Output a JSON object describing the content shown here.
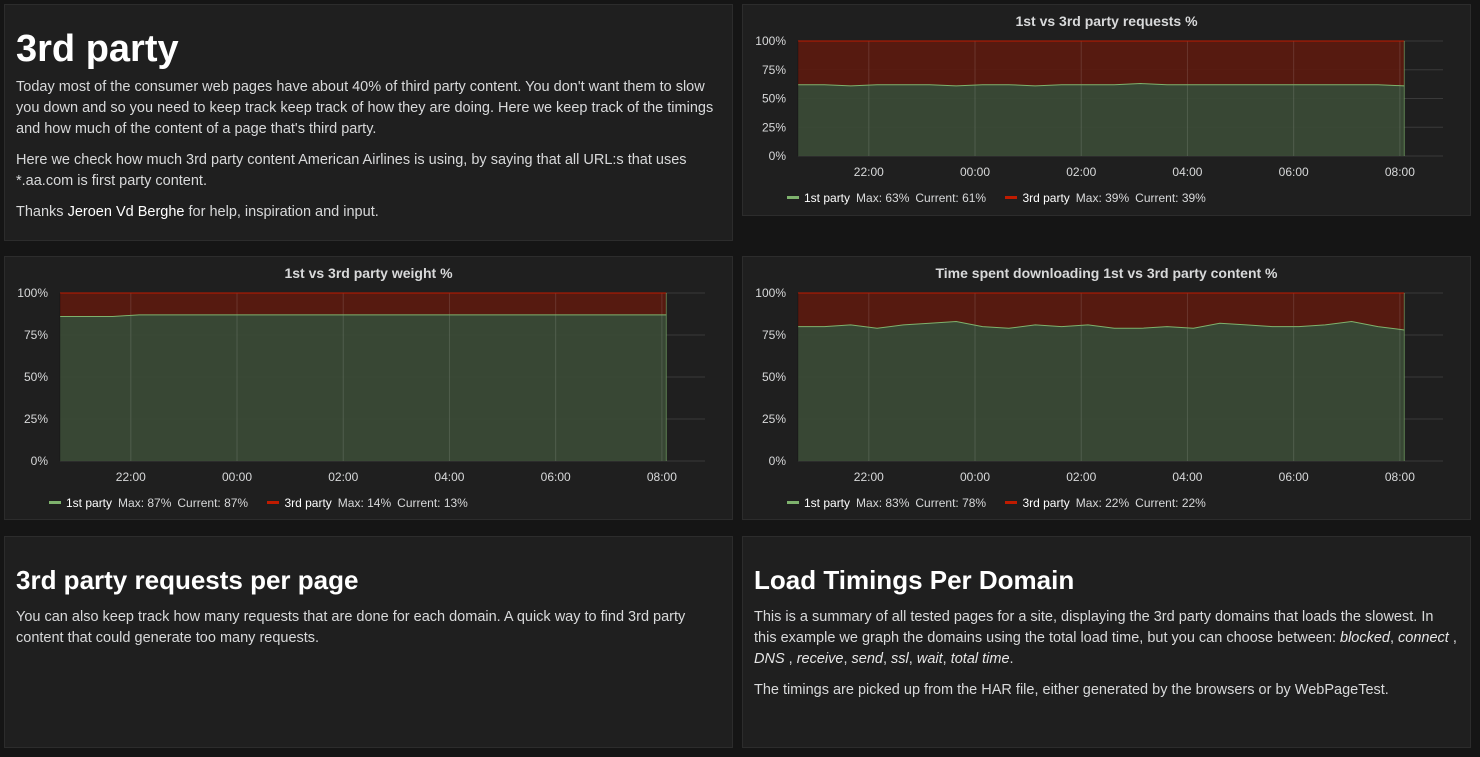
{
  "intro": {
    "title": "3rd party",
    "p1": "Today most of the consumer web pages have about 40% of third party content. You don't want them to slow you down and so you need to keep track keep track of how they are doing. Here we keep track of the timings and how much of the content of a page that's third party.",
    "p2": "Here we check how much 3rd party content American Airlines is using, by saying that all URL:s that uses *.aa.com is first party content.",
    "p3_before": "Thanks ",
    "p3_link": "Jeroen Vd Berghe",
    "p3_after": " for help, inspiration and input."
  },
  "requests_section": {
    "title": "3rd party requests per page",
    "p1": "You can also keep track how many requests that are done for each domain. A quick way to find 3rd party content that could generate too many requests."
  },
  "timings_section": {
    "title": "Load Timings Per Domain",
    "p1_a": "This is a summary of all tested pages for a site, displaying the 3rd party domains that loads the slowest. In this example we graph the domains using the total load time, but you can choose between: ",
    "opt_blocked": "blocked",
    "opt_connect": "connect",
    "opt_dns": "DNS",
    "opt_receive": "receive",
    "opt_send": "send",
    "opt_ssl": "ssl",
    "opt_wait": "wait",
    "opt_total": "total time",
    "p2": "The timings are picked up from the HAR file, either generated by the browsers or by WebPageTest."
  },
  "colors": {
    "first_party": "#7eb26d",
    "third_party": "#bf1b00",
    "first_fill": "#3a4a36",
    "third_fill": "#5a1a10"
  },
  "chart_data": [
    {
      "id": "req",
      "type": "area",
      "title": "1st vs 3rd party requests %",
      "ylim": [
        0,
        100
      ],
      "yticks": [
        "100%",
        "75%",
        "50%",
        "25%",
        "0%"
      ],
      "x_start": "20:40",
      "x_end": "08:05",
      "xticks": [
        "22:00",
        "00:00",
        "02:00",
        "04:00",
        "06:00",
        "08:00"
      ],
      "series": [
        {
          "name": "1st party",
          "max": "Max: 63%",
          "current": "Current: 61%",
          "values": [
            62,
            62,
            61,
            62,
            62,
            62,
            61,
            62,
            62,
            61,
            62,
            62,
            62,
            63,
            62,
            62,
            62,
            62,
            62,
            62,
            62,
            62,
            62,
            61
          ]
        },
        {
          "name": "3rd party",
          "max": "Max: 39%",
          "current": "Current: 39%",
          "values": [
            38,
            38,
            39,
            38,
            38,
            38,
            39,
            38,
            38,
            39,
            38,
            38,
            38,
            37,
            38,
            38,
            38,
            38,
            38,
            38,
            38,
            38,
            38,
            39
          ]
        }
      ]
    },
    {
      "id": "weight",
      "type": "area",
      "title": "1st vs 3rd party weight %",
      "ylim": [
        0,
        100
      ],
      "yticks": [
        "100%",
        "75%",
        "50%",
        "25%",
        "0%"
      ],
      "x_start": "20:40",
      "x_end": "08:05",
      "xticks": [
        "22:00",
        "00:00",
        "02:00",
        "04:00",
        "06:00",
        "08:00"
      ],
      "series": [
        {
          "name": "1st party",
          "max": "Max: 87%",
          "current": "Current: 87%",
          "values": [
            86,
            86,
            86,
            87,
            87,
            87,
            87,
            87,
            87,
            87,
            87,
            87,
            87,
            87,
            87,
            87,
            87,
            87,
            87,
            87,
            87,
            87,
            87,
            87
          ]
        },
        {
          "name": "3rd party",
          "max": "Max: 14%",
          "current": "Current: 13%",
          "values": [
            14,
            14,
            14,
            13,
            13,
            13,
            13,
            13,
            13,
            13,
            13,
            13,
            13,
            13,
            13,
            13,
            13,
            13,
            13,
            13,
            13,
            13,
            13,
            13
          ]
        }
      ]
    },
    {
      "id": "time",
      "type": "area",
      "title": "Time spent downloading 1st vs 3rd party content %",
      "ylim": [
        0,
        100
      ],
      "yticks": [
        "100%",
        "75%",
        "50%",
        "25%",
        "0%"
      ],
      "x_start": "20:40",
      "x_end": "08:05",
      "xticks": [
        "22:00",
        "00:00",
        "02:00",
        "04:00",
        "06:00",
        "08:00"
      ],
      "series": [
        {
          "name": "1st party",
          "max": "Max: 83%",
          "current": "Current: 78%",
          "values": [
            80,
            80,
            81,
            79,
            81,
            82,
            83,
            80,
            79,
            81,
            80,
            81,
            79,
            79,
            80,
            79,
            82,
            81,
            80,
            80,
            81,
            83,
            80,
            78
          ]
        },
        {
          "name": "3rd party",
          "max": "Max: 22%",
          "current": "Current: 22%",
          "values": [
            20,
            20,
            19,
            21,
            19,
            18,
            17,
            20,
            21,
            19,
            20,
            19,
            21,
            21,
            20,
            21,
            18,
            19,
            20,
            20,
            19,
            17,
            20,
            22
          ]
        }
      ]
    }
  ]
}
